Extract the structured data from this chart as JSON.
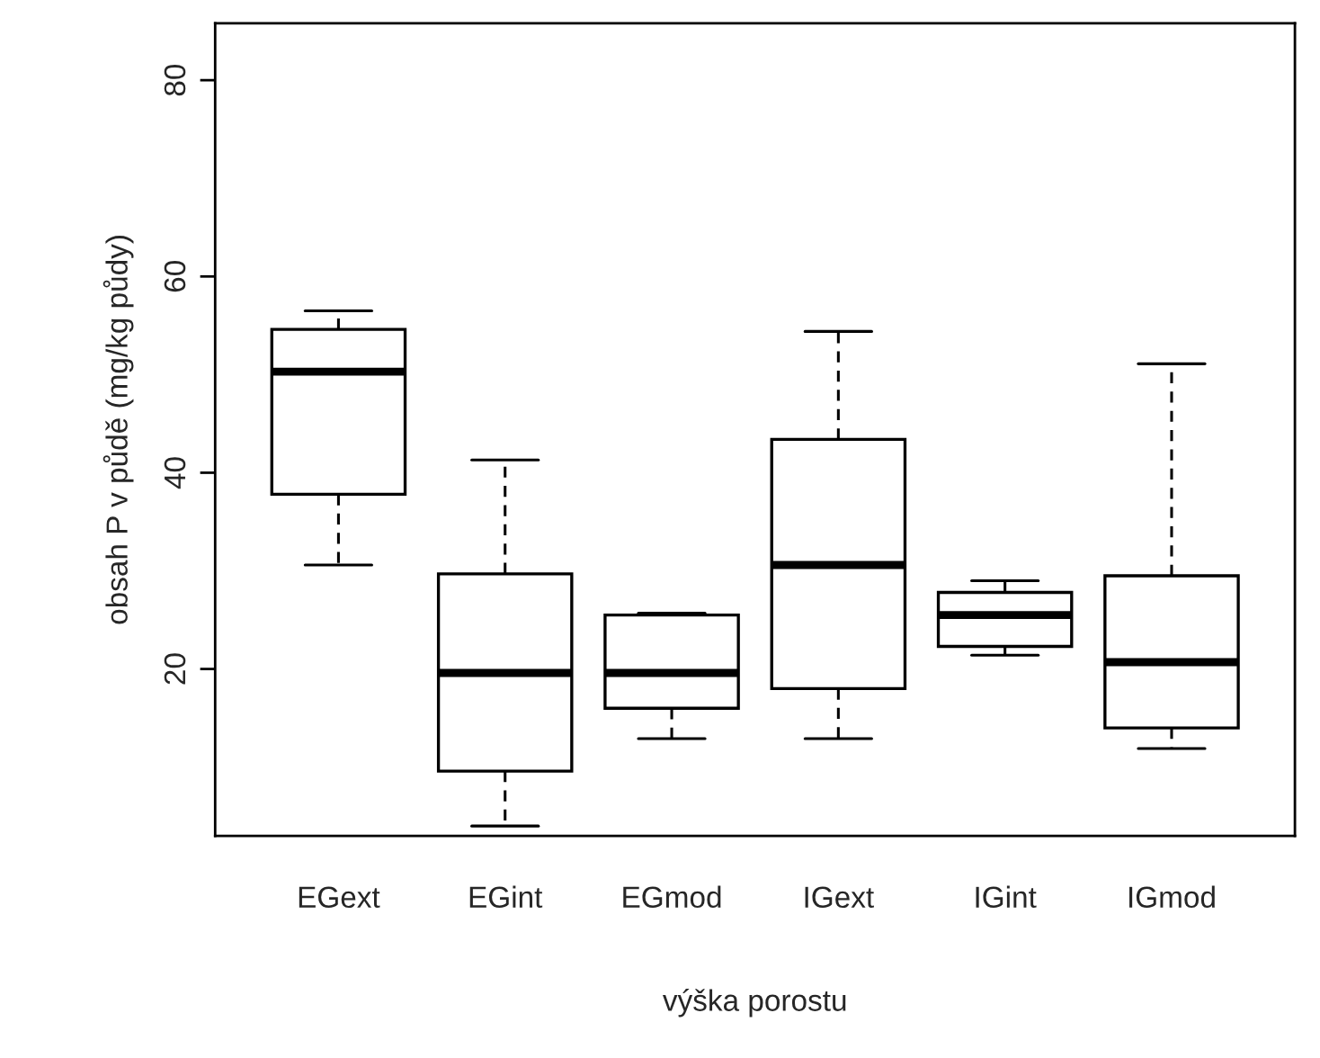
{
  "chart_data": {
    "type": "box",
    "xlabel": "výška porostu",
    "ylabel": "obsah P v půdě (mg/kg půdy)",
    "categories": [
      "EGext",
      "EGint",
      "EGmod",
      "IGext",
      "IGint",
      "IGmod"
    ],
    "boxes": [
      {
        "low": 30.6,
        "q1": 37.8,
        "median": 50.3,
        "q3": 54.6,
        "high": 56.5
      },
      {
        "low": 4.0,
        "q1": 9.6,
        "median": 19.6,
        "q3": 29.7,
        "high": 41.3
      },
      {
        "low": 12.9,
        "q1": 16.0,
        "median": 19.6,
        "q3": 25.5,
        "high": 25.7
      },
      {
        "low": 12.9,
        "q1": 18.0,
        "median": 30.6,
        "q3": 43.4,
        "high": 54.4
      },
      {
        "low": 21.4,
        "q1": 22.3,
        "median": 25.5,
        "q3": 27.8,
        "high": 29.0
      },
      {
        "low": 11.9,
        "q1": 14.0,
        "median": 20.7,
        "q3": 29.5,
        "high": 51.1
      }
    ],
    "ylim": [
      3.0,
      85.8
    ],
    "yticks": [
      20,
      40,
      60,
      80
    ]
  }
}
